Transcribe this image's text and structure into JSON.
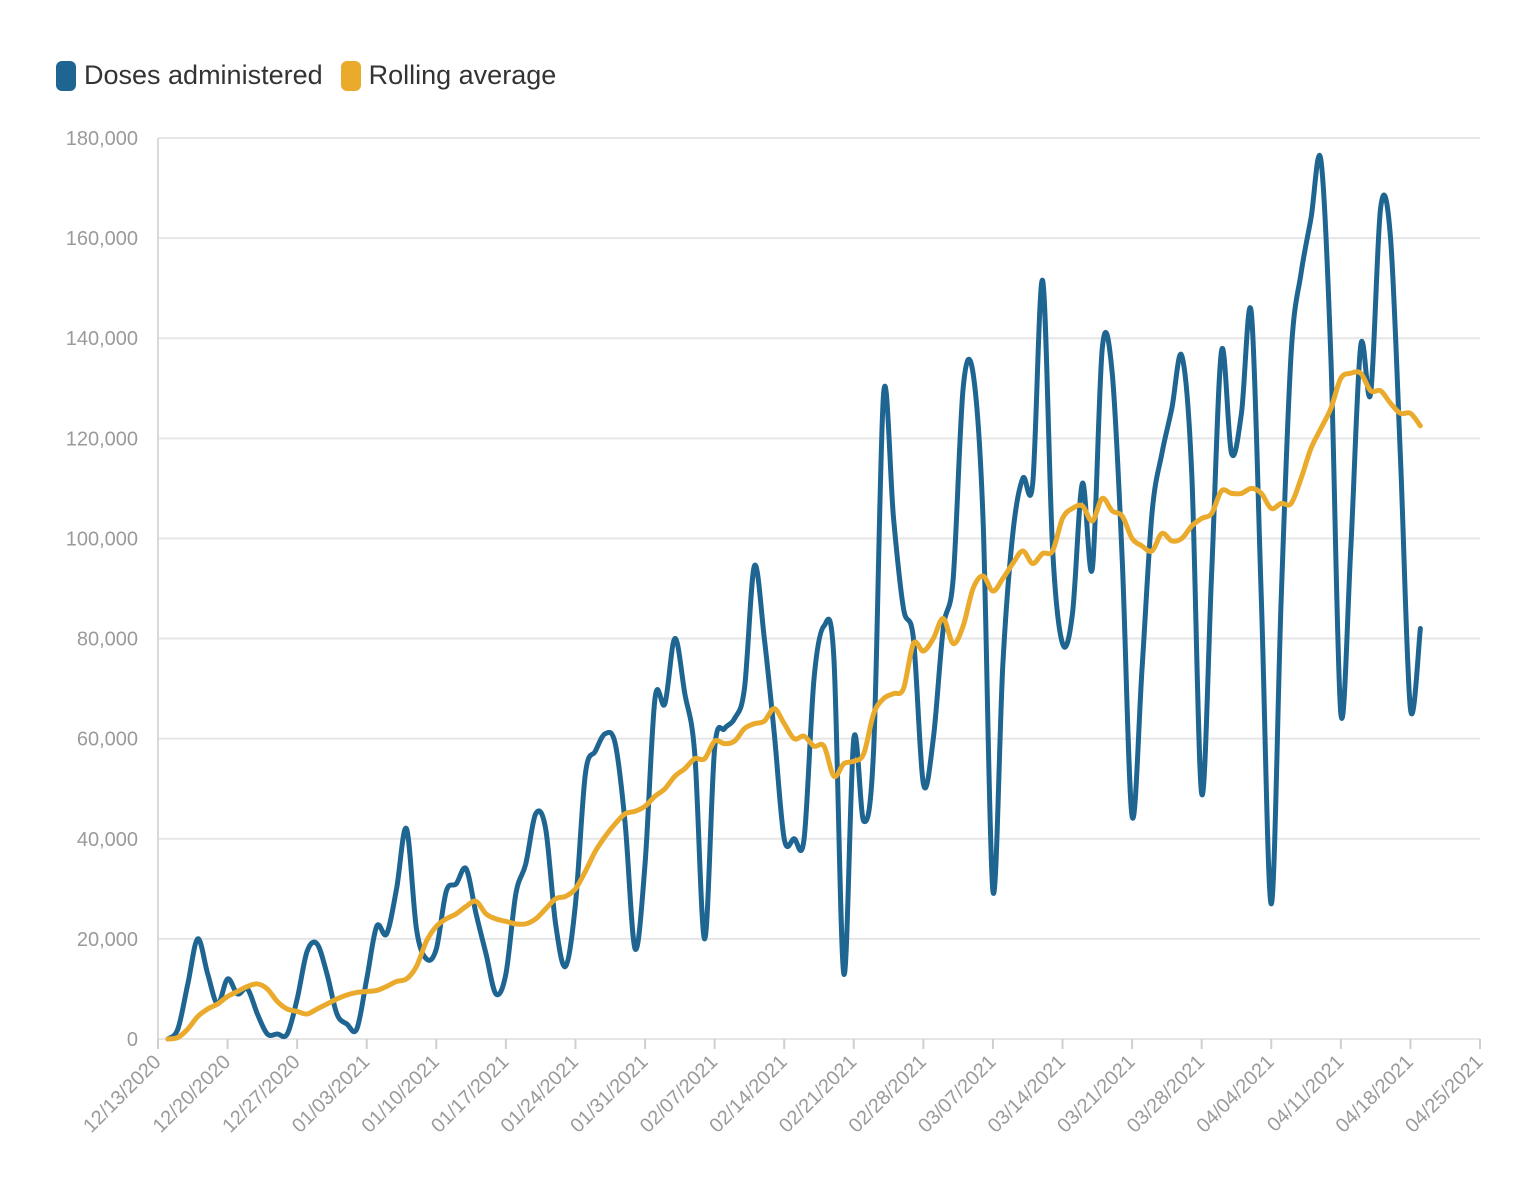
{
  "chart_data": {
    "type": "line",
    "title": "",
    "xlabel": "",
    "ylabel": "",
    "x_start": "12/14/2020",
    "ylim": [
      0,
      180000
    ],
    "xlim": [
      "12/13/2020",
      "04/25/2021"
    ],
    "grid": true,
    "legend_position": "top-left",
    "y_ticks": [
      "0",
      "20,000",
      "40,000",
      "60,000",
      "80,000",
      "100,000",
      "120,000",
      "140,000",
      "160,000",
      "180,000"
    ],
    "x_ticks": [
      "12/13/2020",
      "12/20/2020",
      "12/27/2020",
      "01/03/2021",
      "01/10/2021",
      "01/17/2021",
      "01/24/2021",
      "01/31/2021",
      "02/07/2021",
      "02/14/2021",
      "02/21/2021",
      "02/28/2021",
      "03/07/2021",
      "03/14/2021",
      "03/21/2021",
      "03/28/2021",
      "04/04/2021",
      "04/11/2021",
      "04/18/2021",
      "04/25/2021"
    ],
    "series": [
      {
        "name": "Doses administered",
        "color": "#1f6591",
        "values": [
          0,
          2000,
          11000,
          20000,
          13000,
          7000,
          12000,
          9000,
          10000,
          5000,
          1000,
          1000,
          1000,
          8000,
          17500,
          19000,
          13000,
          5000,
          3000,
          2000,
          12000,
          22500,
          21000,
          30000,
          42000,
          22000,
          16000,
          18000,
          29500,
          31000,
          34000,
          25000,
          17000,
          9000,
          13000,
          29000,
          35000,
          45000,
          42000,
          23000,
          14500,
          27000,
          53000,
          57500,
          61000,
          59000,
          43000,
          18000,
          35000,
          68000,
          67000,
          80000,
          69000,
          57000,
          20000,
          58000,
          62000,
          64000,
          70000,
          94500,
          80000,
          61000,
          40000,
          40000,
          40000,
          72000,
          82500,
          76000,
          13000,
          60000,
          43500,
          58000,
          129000,
          104000,
          86000,
          80000,
          51000,
          60000,
          82000,
          92000,
          130000,
          133000,
          104000,
          29500,
          75000,
          101000,
          112000,
          111000,
          151500,
          98000,
          79000,
          85000,
          111000,
          94000,
          138000,
          133000,
          96000,
          44500,
          74000,
          105000,
          117000,
          126000,
          136500,
          113000,
          49000,
          93000,
          137500,
          117000,
          125000,
          145000,
          88000,
          27000,
          88000,
          137000,
          153000,
          164000,
          175500,
          136000,
          65000,
          98000,
          138500,
          129000,
          166000,
          160000,
          116000,
          66000,
          82000
        ]
      },
      {
        "name": "Rolling average",
        "color": "#eaab2d",
        "values": [
          0,
          300,
          2000,
          4500,
          6000,
          7000,
          8500,
          9500,
          10500,
          11000,
          10000,
          7500,
          6000,
          5500,
          5000,
          6000,
          7000,
          8000,
          8800,
          9300,
          9500,
          9700,
          10500,
          11500,
          12000,
          14500,
          19500,
          22500,
          24000,
          25000,
          26500,
          27500,
          25000,
          24000,
          23500,
          23000,
          23000,
          24000,
          26000,
          28000,
          28500,
          30000,
          33500,
          37500,
          40500,
          43000,
          45000,
          45500,
          46500,
          48500,
          50000,
          52500,
          54000,
          56000,
          56000,
          59500,
          59000,
          59500,
          62000,
          63000,
          63500,
          66000,
          63000,
          60000,
          60500,
          58500,
          58500,
          52500,
          55000,
          55500,
          57000,
          65000,
          68000,
          69000,
          70000,
          79000,
          77500,
          80000,
          84000,
          79000,
          82500,
          90000,
          92500,
          89500,
          92000,
          95000,
          97500,
          95000,
          97000,
          97500,
          104000,
          106000,
          106500,
          103500,
          108000,
          105500,
          104500,
          100000,
          98500,
          97500,
          101000,
          99500,
          100000,
          102500,
          104000,
          105000,
          109500,
          109000,
          109000,
          110000,
          109000,
          106000,
          107000,
          107000,
          112000,
          118000,
          122000,
          126000,
          132000,
          133000,
          133000,
          129500,
          129500,
          127000,
          125000,
          125000,
          122500
        ]
      }
    ]
  }
}
